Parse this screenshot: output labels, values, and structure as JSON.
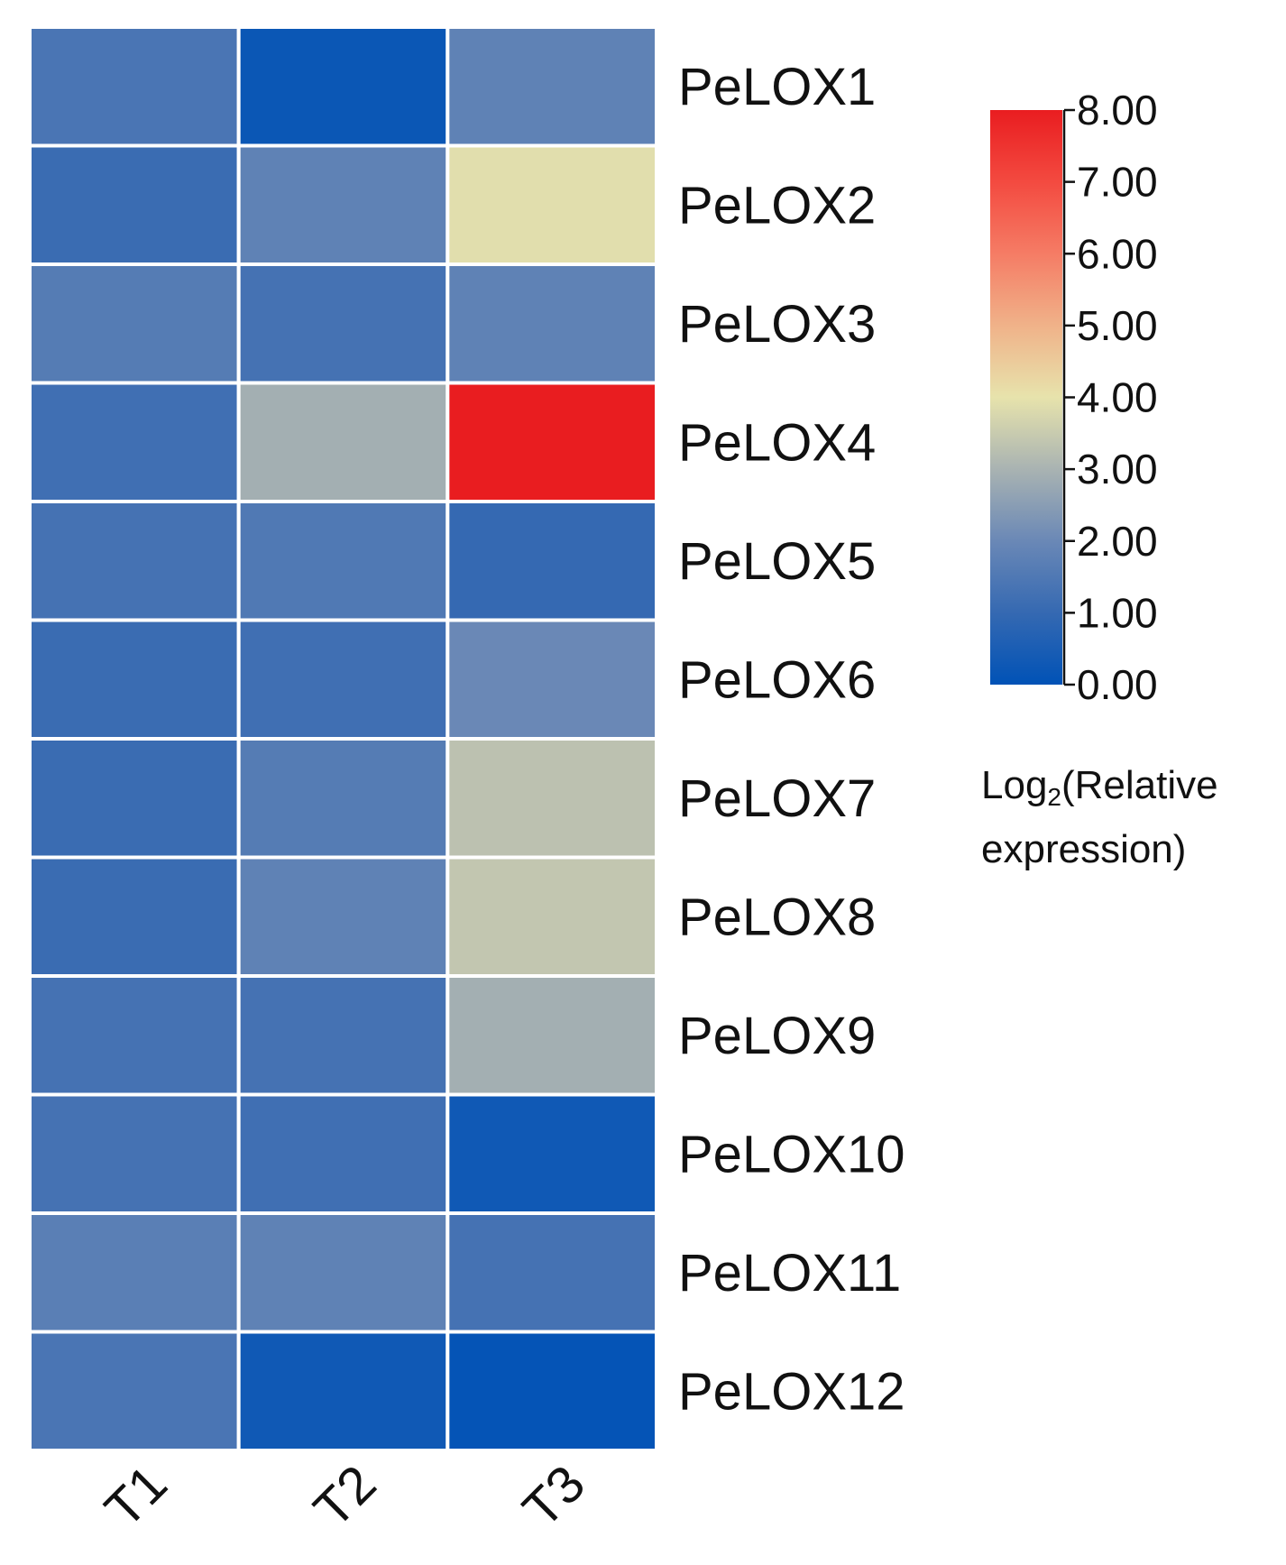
{
  "chart_data": {
    "type": "heatmap",
    "title": "",
    "columns": [
      "T1",
      "T2",
      "T3"
    ],
    "rows": [
      "PeLOX1",
      "PeLOX2",
      "PeLOX3",
      "PeLOX4",
      "PeLOX5",
      "PeLOX6",
      "PeLOX7",
      "PeLOX8",
      "PeLOX9",
      "PeLOX10",
      "PeLOX11",
      "PeLOX12"
    ],
    "values": [
      [
        1.4,
        0.2,
        1.8
      ],
      [
        1.1,
        1.8,
        3.9
      ],
      [
        1.6,
        1.3,
        1.8
      ],
      [
        1.2,
        2.9,
        8.0
      ],
      [
        1.3,
        1.5,
        1.0
      ],
      [
        1.1,
        1.2,
        2.0
      ],
      [
        1.1,
        1.6,
        3.3
      ],
      [
        1.1,
        1.8,
        3.4
      ],
      [
        1.3,
        1.3,
        2.9
      ],
      [
        1.3,
        1.2,
        0.3
      ],
      [
        1.7,
        1.8,
        1.3
      ],
      [
        1.4,
        0.3,
        0.1
      ]
    ],
    "colorbar": {
      "min": 0,
      "max": 8,
      "ticks": [
        "0.00",
        "1.00",
        "2.00",
        "3.00",
        "4.00",
        "5.00",
        "6.00",
        "7.00",
        "8.00"
      ],
      "colors": [
        "#0052b6",
        "#3569b2",
        "#6a88b6",
        "#a9b3b2",
        "#e7e3ac",
        "#f0b289",
        "#f57c65",
        "#f34a40",
        "#e91d20"
      ],
      "label_prefix": "Log",
      "label_subscript": "2",
      "label_suffix": "(Relative expression)"
    }
  }
}
